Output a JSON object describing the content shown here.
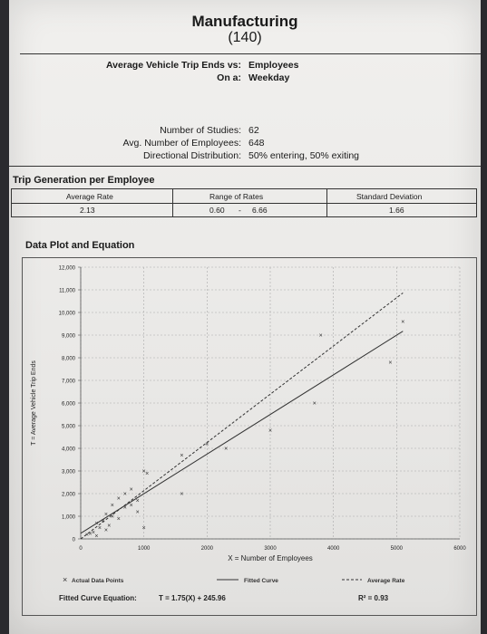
{
  "title": "Manufacturing",
  "code": "(140)",
  "header": {
    "line1_label": "Average Vehicle Trip Ends vs:",
    "line1_value": "Employees",
    "line2_label": "On a:",
    "line2_value": "Weekday"
  },
  "studies": {
    "num_label": "Number of Studies:",
    "num_value": "62",
    "emp_label": "Avg. Number of Employees:",
    "emp_value": "648",
    "dir_label": "Directional Distribution:",
    "dir_value": "50% entering, 50% exiting"
  },
  "trip_gen": {
    "heading": "Trip Generation per Employee",
    "col_avg": "Average Rate",
    "col_range": "Range of Rates",
    "col_sd": "Standard Deviation",
    "avg": "2.13",
    "range_low": "0.60",
    "range_sep": "-",
    "range_high": "6.66",
    "sd": "1.66"
  },
  "plot_heading": "Data Plot and Equation",
  "chart_data": {
    "type": "scatter",
    "xlabel": "X = Number of Employees",
    "ylabel": "T = Average Vehicle Trip Ends",
    "xlim": [
      0,
      6000
    ],
    "ylim": [
      0,
      12000
    ],
    "x_ticks": [
      0,
      1000,
      2000,
      3000,
      4000,
      5000,
      6000
    ],
    "x_tick_labels": [
      "0",
      "1000",
      "2000",
      "3000",
      "4000",
      "5000",
      "6000"
    ],
    "y_ticks": [
      0,
      1000,
      2000,
      3000,
      4000,
      5000,
      6000,
      7000,
      8000,
      9000,
      10000,
      11000,
      12000
    ],
    "y_tick_labels": [
      "0",
      "1,000",
      "2,000",
      "3,000",
      "4,000",
      "5,000",
      "6,000",
      "7,000",
      "8,000",
      "9,000",
      "10,000",
      "11,000",
      "12,000"
    ],
    "grid": true,
    "points": [
      [
        5100,
        9600
      ],
      [
        3800,
        9000
      ],
      [
        4900,
        7800
      ],
      [
        3700,
        6000
      ],
      [
        3000,
        4800
      ],
      [
        2300,
        4000
      ],
      [
        2000,
        4200
      ],
      [
        1600,
        3700
      ],
      [
        1000,
        3000
      ],
      [
        1050,
        2900
      ],
      [
        1600,
        2000
      ],
      [
        800,
        2200
      ],
      [
        700,
        2000
      ],
      [
        600,
        1800
      ],
      [
        900,
        1700
      ],
      [
        500,
        1500
      ],
      [
        700,
        1400
      ],
      [
        800,
        1500
      ],
      [
        400,
        1100
      ],
      [
        500,
        1000
      ],
      [
        600,
        900
      ],
      [
        350,
        800
      ],
      [
        250,
        700
      ],
      [
        450,
        600
      ],
      [
        900,
        1200
      ],
      [
        300,
        500
      ],
      [
        400,
        400
      ],
      [
        200,
        300
      ],
      [
        150,
        250
      ],
      [
        100,
        200
      ],
      [
        250,
        150
      ],
      [
        1000,
        500
      ]
    ],
    "average_rate": 2.13,
    "fitted_curve": {
      "slope": 1.75,
      "intercept": 245.96
    },
    "legend": [
      "Actual Data Points",
      "Fitted Curve",
      "Average Rate"
    ],
    "legend_placement": "bottom"
  },
  "equation": {
    "label": "Fitted Curve Equation:",
    "value": "T = 1.75(X) + 245.96",
    "r2": "R² = 0.93"
  },
  "marker_glyph": "×"
}
